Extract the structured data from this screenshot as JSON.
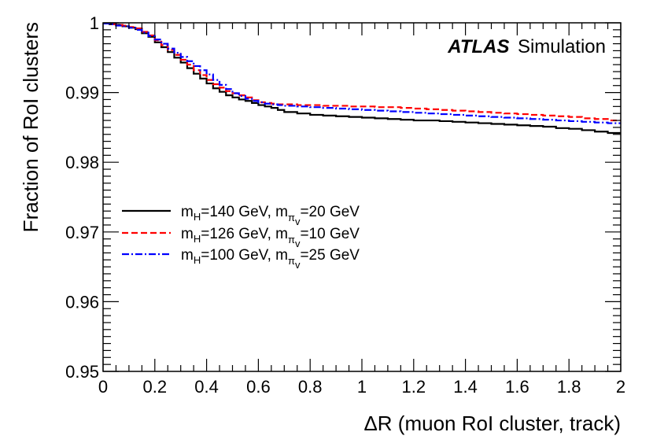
{
  "chart_data": {
    "type": "line",
    "step": true,
    "xlabel": "ΔR (muon RoI cluster, track)",
    "ylabel": "Fraction of RoI clusters",
    "xlim": [
      0,
      2
    ],
    "ylim": [
      0.95,
      1.0
    ],
    "x_ticks": [
      0,
      0.2,
      0.4,
      0.6,
      0.8,
      1,
      1.2,
      1.4,
      1.6,
      1.8,
      2
    ],
    "x_tick_labels": [
      "0",
      "0.2",
      "0.4",
      "0.6",
      "0.8",
      "1",
      "1.2",
      "1.4",
      "1.6",
      "1.8",
      "2"
    ],
    "y_ticks": [
      0.95,
      0.96,
      0.97,
      0.98,
      0.99,
      1.0
    ],
    "y_tick_labels": [
      "0.95",
      "0.96",
      "0.97",
      "0.98",
      "0.99",
      "1"
    ],
    "annotation": {
      "bold": "ATLAS",
      "rest": "Simulation"
    },
    "legend_position": "middle-left",
    "series": [
      {
        "name": "mH=140 GeV, mπv=20 GeV",
        "label_parts": {
          "m1": "m",
          "sub1": "H",
          "mid": "=140 GeV, m",
          "sub2": "π",
          "subsub2": "v",
          "end": "=20 GeV"
        },
        "color": "#000000",
        "dash": "",
        "x": [
          0,
          0.025,
          0.05,
          0.075,
          0.1,
          0.125,
          0.15,
          0.175,
          0.2,
          0.225,
          0.25,
          0.275,
          0.3,
          0.325,
          0.35,
          0.375,
          0.4,
          0.425,
          0.45,
          0.475,
          0.5,
          0.525,
          0.55,
          0.575,
          0.6,
          0.625,
          0.65,
          0.675,
          0.7,
          0.75,
          0.8,
          0.85,
          0.9,
          0.95,
          1.0,
          1.05,
          1.1,
          1.15,
          1.2,
          1.25,
          1.3,
          1.35,
          1.4,
          1.45,
          1.5,
          1.55,
          1.6,
          1.65,
          1.7,
          1.75,
          1.8,
          1.85,
          1.9,
          1.95
        ],
        "values": [
          0.9999,
          0.9998,
          0.9997,
          0.9995,
          0.9993,
          0.9991,
          0.9985,
          0.998,
          0.9972,
          0.9965,
          0.9958,
          0.995,
          0.9943,
          0.9935,
          0.9927,
          0.992,
          0.9913,
          0.9906,
          0.9901,
          0.9896,
          0.9893,
          0.989,
          0.9888,
          0.9885,
          0.9882,
          0.988,
          0.9878,
          0.9875,
          0.9872,
          0.987,
          0.9868,
          0.9867,
          0.9866,
          0.9865,
          0.9864,
          0.9863,
          0.9862,
          0.9861,
          0.986,
          0.986,
          0.9859,
          0.9858,
          0.9857,
          0.9856,
          0.9855,
          0.9854,
          0.9853,
          0.9852,
          0.9851,
          0.9849,
          0.9848,
          0.9846,
          0.9844,
          0.9842
        ]
      },
      {
        "name": "mH=126 GeV, mπv=10 GeV",
        "label_parts": {
          "m1": "m",
          "sub1": "H",
          "mid": "=126 GeV, m",
          "sub2": "π",
          "subsub2": "v",
          "end": "=10 GeV"
        },
        "color": "#ff0000",
        "dash": "8,4",
        "x": [
          0,
          0.025,
          0.05,
          0.075,
          0.1,
          0.125,
          0.15,
          0.175,
          0.2,
          0.225,
          0.25,
          0.275,
          0.3,
          0.325,
          0.35,
          0.375,
          0.4,
          0.425,
          0.45,
          0.475,
          0.5,
          0.525,
          0.55,
          0.575,
          0.6,
          0.625,
          0.65,
          0.675,
          0.7,
          0.75,
          0.8,
          0.85,
          0.9,
          0.95,
          1.0,
          1.05,
          1.1,
          1.15,
          1.2,
          1.25,
          1.3,
          1.35,
          1.4,
          1.45,
          1.5,
          1.55,
          1.6,
          1.65,
          1.7,
          1.75,
          1.8,
          1.85,
          1.9,
          1.95
        ],
        "values": [
          0.9999,
          0.9998,
          0.9997,
          0.9996,
          0.9994,
          0.9992,
          0.9987,
          0.9982,
          0.9975,
          0.9968,
          0.9961,
          0.9954,
          0.9947,
          0.994,
          0.9932,
          0.9925,
          0.9918,
          0.9912,
          0.9907,
          0.9902,
          0.9899,
          0.9896,
          0.9893,
          0.9889,
          0.9886,
          0.9885,
          0.9884,
          0.9883,
          0.9883,
          0.9882,
          0.9882,
          0.9881,
          0.9881,
          0.988,
          0.988,
          0.9879,
          0.9879,
          0.9878,
          0.9877,
          0.9876,
          0.9875,
          0.9874,
          0.9873,
          0.9872,
          0.9871,
          0.987,
          0.9869,
          0.9868,
          0.9867,
          0.9866,
          0.9865,
          0.9863,
          0.9862,
          0.986
        ]
      },
      {
        "name": "mH=100 GeV, mπv=25 GeV",
        "label_parts": {
          "m1": "m",
          "sub1": "H",
          "mid": "=100 GeV, m",
          "sub2": "π",
          "subsub2": "v",
          "end": "=25 GeV"
        },
        "color": "#0000ff",
        "dash": "9,3,2,3",
        "x": [
          0,
          0.025,
          0.05,
          0.075,
          0.1,
          0.125,
          0.15,
          0.175,
          0.2,
          0.225,
          0.25,
          0.275,
          0.3,
          0.325,
          0.35,
          0.375,
          0.4,
          0.425,
          0.45,
          0.475,
          0.5,
          0.525,
          0.55,
          0.575,
          0.6,
          0.625,
          0.65,
          0.675,
          0.7,
          0.75,
          0.8,
          0.85,
          0.9,
          0.95,
          1.0,
          1.05,
          1.1,
          1.15,
          1.2,
          1.25,
          1.3,
          1.35,
          1.4,
          1.45,
          1.5,
          1.55,
          1.6,
          1.65,
          1.7,
          1.75,
          1.8,
          1.85,
          1.9,
          1.95
        ],
        "values": [
          0.9999,
          0.9998,
          0.9996,
          0.9995,
          0.9993,
          0.999,
          0.9986,
          0.9981,
          0.9976,
          0.997,
          0.9963,
          0.9957,
          0.9951,
          0.9945,
          0.9938,
          0.9932,
          0.9926,
          0.9918,
          0.9911,
          0.9905,
          0.9899,
          0.9895,
          0.9891,
          0.9888,
          0.9886,
          0.9884,
          0.9883,
          0.9882,
          0.9881,
          0.988,
          0.9879,
          0.9878,
          0.9877,
          0.9876,
          0.9875,
          0.9874,
          0.9873,
          0.9872,
          0.9871,
          0.987,
          0.9869,
          0.9868,
          0.9867,
          0.9866,
          0.9865,
          0.9864,
          0.9863,
          0.9862,
          0.9861,
          0.986,
          0.9859,
          0.9858,
          0.9857,
          0.9856
        ]
      }
    ]
  }
}
